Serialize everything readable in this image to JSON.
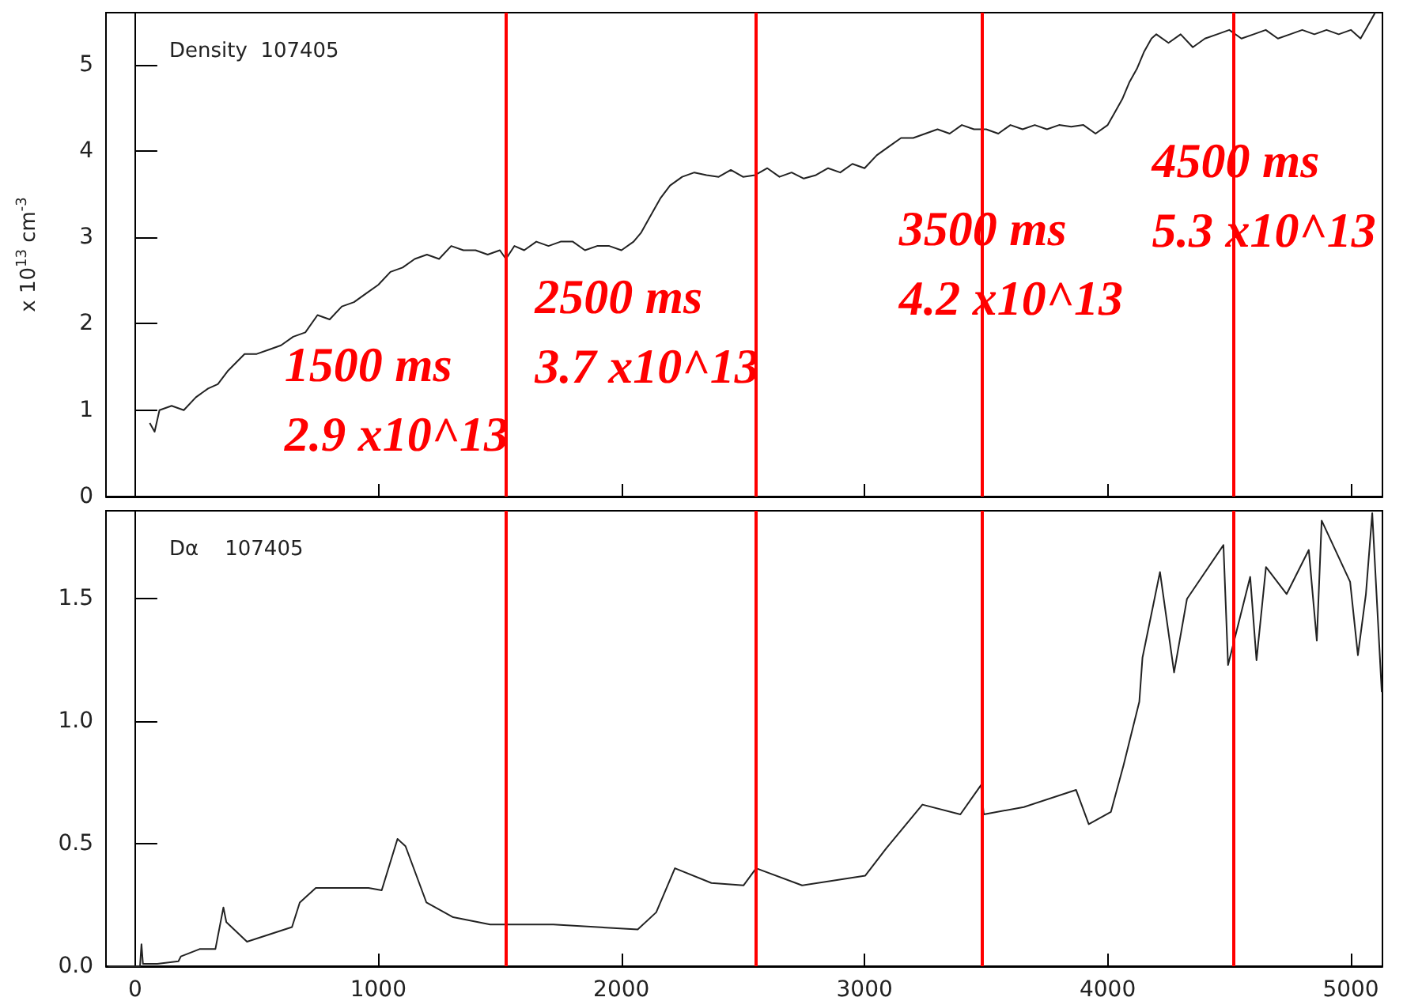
{
  "chart_data": [
    {
      "type": "line",
      "ylabel": "x 10$^{13}$ cm$^{-3}$",
      "xlim": [
        -120,
        5130
      ],
      "xticks": [
        0,
        1000,
        2000,
        3000,
        4000,
        5000
      ],
      "ylim": [
        0,
        5.6
      ],
      "yticks": [
        0,
        1,
        2,
        3,
        4,
        5
      ],
      "tick_labels": "y",
      "x": [
        60,
        80,
        100,
        150,
        200,
        250,
        300,
        340,
        380,
        450,
        500,
        550,
        600,
        650,
        700,
        750,
        800,
        850,
        900,
        950,
        1000,
        1050,
        1100,
        1150,
        1200,
        1250,
        1300,
        1350,
        1400,
        1450,
        1500,
        1525,
        1560,
        1600,
        1650,
        1700,
        1750,
        1800,
        1850,
        1900,
        1950,
        2000,
        2050,
        2080,
        2120,
        2160,
        2200,
        2250,
        2300,
        2350,
        2400,
        2450,
        2500,
        2550,
        2600,
        2650,
        2700,
        2750,
        2800,
        2850,
        2900,
        2950,
        3000,
        3050,
        3100,
        3150,
        3200,
        3250,
        3300,
        3350,
        3400,
        3450,
        3500,
        3550,
        3600,
        3650,
        3700,
        3750,
        3800,
        3850,
        3900,
        3950,
        4000,
        4030,
        4060,
        4090,
        4120,
        4150,
        4180,
        4200,
        4250,
        4300,
        4350,
        4400,
        4450,
        4500,
        4550,
        4600,
        4650,
        4700,
        4750,
        4800,
        4850,
        4900,
        4950,
        5000,
        5040,
        5070,
        5100
      ],
      "values": [
        0.85,
        0.75,
        1.0,
        1.05,
        1.0,
        1.15,
        1.25,
        1.3,
        1.45,
        1.65,
        1.65,
        1.7,
        1.75,
        1.85,
        1.9,
        2.1,
        2.05,
        2.2,
        2.25,
        2.35,
        2.45,
        2.6,
        2.65,
        2.75,
        2.8,
        2.75,
        2.9,
        2.85,
        2.85,
        2.8,
        2.85,
        2.75,
        2.9,
        2.85,
        2.95,
        2.9,
        2.95,
        2.95,
        2.85,
        2.9,
        2.9,
        2.85,
        2.95,
        3.05,
        3.25,
        3.45,
        3.6,
        3.7,
        3.75,
        3.72,
        3.7,
        3.78,
        3.7,
        3.72,
        3.8,
        3.7,
        3.75,
        3.68,
        3.72,
        3.8,
        3.75,
        3.85,
        3.8,
        3.95,
        4.05,
        4.15,
        4.15,
        4.2,
        4.25,
        4.2,
        4.3,
        4.25,
        4.25,
        4.2,
        4.3,
        4.25,
        4.3,
        4.25,
        4.3,
        4.28,
        4.3,
        4.2,
        4.3,
        4.45,
        4.6,
        4.8,
        4.95,
        5.15,
        5.3,
        5.35,
        5.25,
        5.35,
        5.2,
        5.3,
        5.35,
        5.4,
        5.3,
        5.35,
        5.4,
        5.3,
        5.35,
        5.4,
        5.35,
        5.4,
        5.35,
        5.4,
        5.3,
        5.45,
        5.6
      ],
      "color": "#222222",
      "ref_lines": [
        {
          "axis": "x",
          "value": 1525,
          "color": "#ff0000",
          "label": "1500 ms\n2.9 x10^13"
        },
        {
          "axis": "x",
          "value": 2555,
          "color": "#ff0000",
          "label": "2500 ms\n3.7 x10^13"
        },
        {
          "axis": "x",
          "value": 3480,
          "color": "#ff0000",
          "label": "3500 ms\n4.2 x10^13"
        },
        {
          "axis": "x",
          "value": 4520,
          "color": "#ff0000",
          "label": "4500 ms\n5.3 x10^13"
        }
      ],
      "annotations": [
        "Density  107405"
      ]
    },
    {
      "type": "line",
      "xlim": [
        -120,
        5130
      ],
      "xticks": [
        0,
        1000,
        2000,
        3000,
        4000,
        5000
      ],
      "ylim": [
        0,
        1.86
      ],
      "yticks": [
        {
          "value": 0,
          "label": "0.0"
        },
        0.5,
        {
          "value": 1,
          "label": "1.0"
        },
        1.5
      ],
      "x": [
        -110,
        0,
        20,
        26,
        32,
        91,
        178,
        188,
        265,
        330,
        363,
        375,
        460,
        645,
        677,
        743,
        960,
        1014,
        1079,
        1112,
        1198,
        1308,
        1460,
        1524,
        1720,
        2067,
        2143,
        2220,
        2370,
        2502,
        2554,
        2743,
        3003,
        3088,
        3238,
        3394,
        3479,
        3490,
        3655,
        3870,
        3922,
        4013,
        4065,
        4130,
        4143,
        4215,
        4273,
        4326,
        4476,
        4495,
        4586,
        4612,
        4651,
        4736,
        4827,
        4860,
        4880,
        4997,
        5029,
        5062,
        5088,
        5127
      ],
      "values": [
        0.0,
        0.0,
        0.0,
        0.09,
        0.01,
        0.01,
        0.02,
        0.04,
        0.07,
        0.07,
        0.24,
        0.18,
        0.1,
        0.16,
        0.26,
        0.32,
        0.32,
        0.31,
        0.52,
        0.49,
        0.26,
        0.2,
        0.17,
        0.17,
        0.17,
        0.15,
        0.22,
        0.4,
        0.34,
        0.33,
        0.4,
        0.33,
        0.37,
        0.48,
        0.66,
        0.62,
        0.74,
        0.62,
        0.65,
        0.72,
        0.58,
        0.63,
        0.82,
        1.08,
        1.26,
        1.61,
        1.2,
        1.5,
        1.72,
        1.23,
        1.59,
        1.25,
        1.63,
        1.52,
        1.7,
        1.33,
        1.82,
        1.57,
        1.27,
        1.52,
        1.85,
        1.12
      ],
      "color": "#222222",
      "ref_lines": [
        {
          "axis": "x",
          "value": 1525,
          "color": "#ff0000"
        },
        {
          "axis": "x",
          "value": 2555,
          "color": "#ff0000"
        },
        {
          "axis": "x",
          "value": 3480,
          "color": "#ff0000"
        },
        {
          "axis": "x",
          "value": 4520,
          "color": "#ff0000"
        }
      ],
      "annotations": [
        "Dα    107405"
      ]
    }
  ]
}
